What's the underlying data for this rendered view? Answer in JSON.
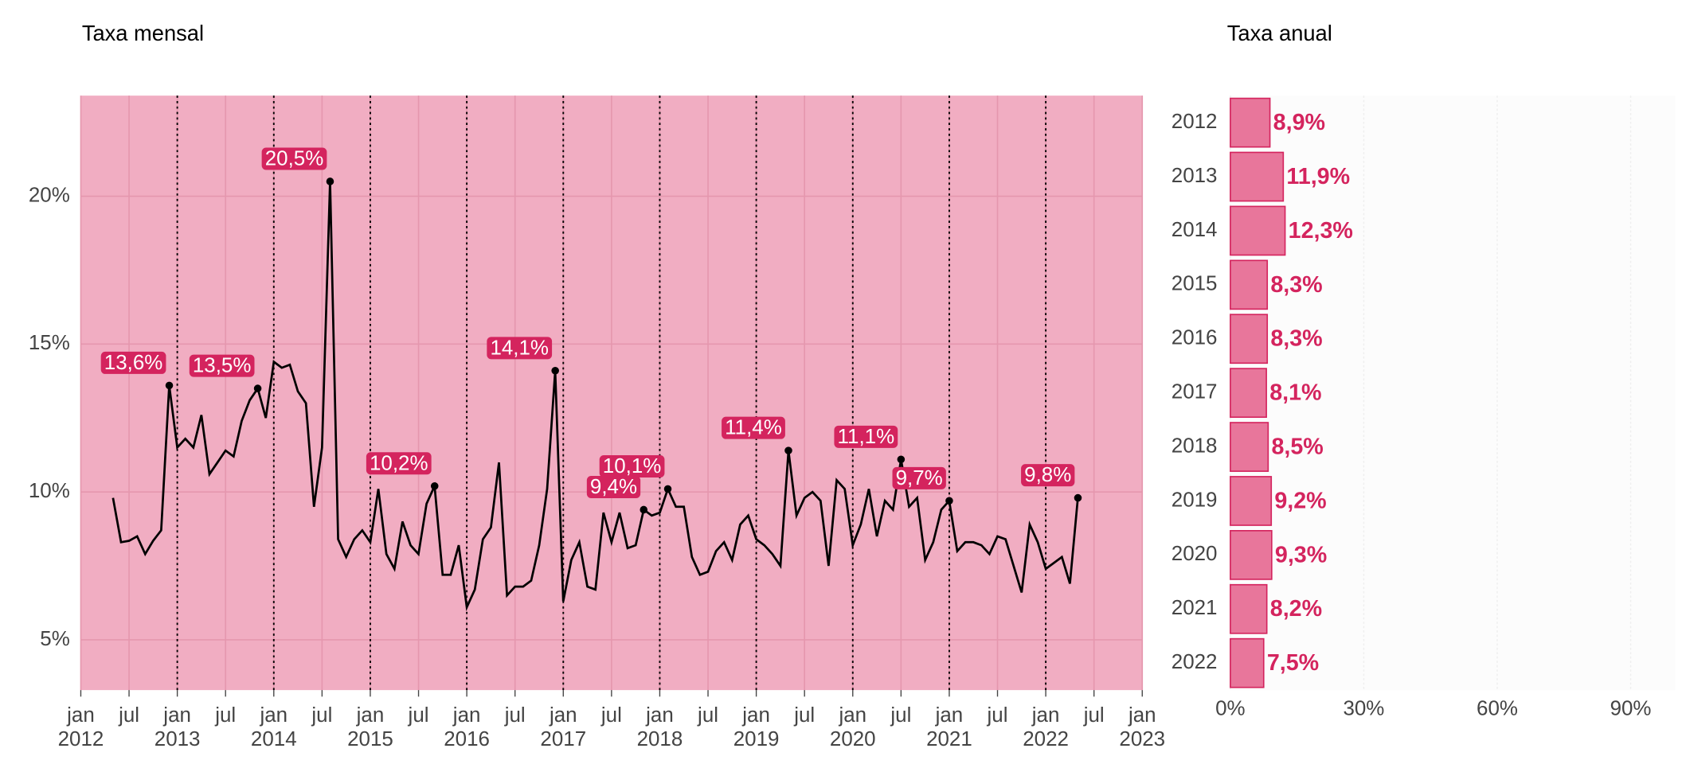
{
  "chart_data": [
    {
      "type": "line",
      "title": "Taxa mensal",
      "color": "#000000",
      "background": "#f1adc2",
      "label_color": "#d4245e",
      "x": [
        "2012-05",
        "2012-06",
        "2012-07",
        "2012-08",
        "2012-09",
        "2012-10",
        "2012-11",
        "2012-12",
        "2013-01",
        "2013-02",
        "2013-03",
        "2013-04",
        "2013-05",
        "2013-06",
        "2013-07",
        "2013-08",
        "2013-09",
        "2013-10",
        "2013-11",
        "2013-12",
        "2014-01",
        "2014-02",
        "2014-03",
        "2014-04",
        "2014-05",
        "2014-06",
        "2014-07",
        "2014-08",
        "2014-09",
        "2014-10",
        "2014-11",
        "2014-12",
        "2015-01",
        "2015-02",
        "2015-03",
        "2015-04",
        "2015-05",
        "2015-06",
        "2015-07",
        "2015-08",
        "2015-09",
        "2015-10",
        "2015-11",
        "2015-12",
        "2016-01",
        "2016-02",
        "2016-03",
        "2016-04",
        "2016-05",
        "2016-06",
        "2016-07",
        "2016-08",
        "2016-09",
        "2016-10",
        "2016-11",
        "2016-12",
        "2017-01",
        "2017-02",
        "2017-03",
        "2017-04",
        "2017-05",
        "2017-06",
        "2017-07",
        "2017-08",
        "2017-09",
        "2017-10",
        "2017-11",
        "2017-12",
        "2018-01",
        "2018-02",
        "2018-03",
        "2018-04",
        "2018-05",
        "2018-06",
        "2018-07",
        "2018-08",
        "2018-09",
        "2018-10",
        "2018-11",
        "2018-12",
        "2019-01",
        "2019-02",
        "2019-03",
        "2019-04",
        "2019-05",
        "2019-06",
        "2019-07",
        "2019-08",
        "2019-09",
        "2019-10",
        "2019-11",
        "2019-12",
        "2020-01",
        "2020-02",
        "2020-03",
        "2020-04",
        "2020-05",
        "2020-06",
        "2020-07",
        "2020-08",
        "2020-09",
        "2020-10",
        "2020-11",
        "2020-12",
        "2021-01",
        "2021-02",
        "2021-03",
        "2021-04",
        "2021-05",
        "2021-06",
        "2021-07",
        "2021-08",
        "2021-09",
        "2021-10",
        "2021-11",
        "2021-12",
        "2022-01",
        "2022-02",
        "2022-03",
        "2022-04",
        "2022-05"
      ],
      "values": [
        9.8,
        8.3,
        8.35,
        8.5,
        7.9,
        8.35,
        8.7,
        13.6,
        11.5,
        11.8,
        11.5,
        12.6,
        10.6,
        11.0,
        11.4,
        11.2,
        12.4,
        13.1,
        13.5,
        12.5,
        14.4,
        14.2,
        14.3,
        13.4,
        13.0,
        9.5,
        11.5,
        20.5,
        8.4,
        7.8,
        8.4,
        8.7,
        8.3,
        10.1,
        7.9,
        7.4,
        9.0,
        8.2,
        7.9,
        9.6,
        10.2,
        7.2,
        7.2,
        8.2,
        6.1,
        6.7,
        8.4,
        8.8,
        11.0,
        6.5,
        6.8,
        6.8,
        7.0,
        8.2,
        10.1,
        14.1,
        6.3,
        7.7,
        8.3,
        6.8,
        6.7,
        9.3,
        8.3,
        9.3,
        8.1,
        8.2,
        9.4,
        9.2,
        9.3,
        10.1,
        9.5,
        9.5,
        7.8,
        7.2,
        7.3,
        8.0,
        8.3,
        7.7,
        8.9,
        9.2,
        8.4,
        8.2,
        7.9,
        7.5,
        11.4,
        9.2,
        9.8,
        10.0,
        9.7,
        7.5,
        10.4,
        10.1,
        8.2,
        8.9,
        10.1,
        8.5,
        9.7,
        9.4,
        11.1,
        9.5,
        9.8,
        7.7,
        8.3,
        9.4,
        9.7,
        8.0,
        8.3,
        8.3,
        8.2,
        7.9,
        8.5,
        8.4,
        7.5,
        6.6,
        8.9,
        8.3,
        7.4,
        7.6,
        7.8,
        6.9,
        9.8
      ],
      "value_labels": [
        null,
        null,
        null,
        null,
        null,
        null,
        null,
        "13,6%",
        null,
        null,
        null,
        null,
        null,
        null,
        null,
        null,
        null,
        null,
        "13,5%",
        null,
        null,
        null,
        null,
        null,
        null,
        null,
        null,
        "20,5%",
        null,
        null,
        null,
        null,
        null,
        null,
        null,
        null,
        null,
        null,
        null,
        null,
        "10,2%",
        null,
        null,
        null,
        null,
        null,
        null,
        null,
        null,
        null,
        null,
        null,
        null,
        null,
        null,
        "14,1%",
        null,
        null,
        null,
        null,
        null,
        null,
        null,
        null,
        null,
        null,
        "9,4%",
        null,
        null,
        "10,1%",
        null,
        null,
        null,
        null,
        null,
        null,
        null,
        null,
        null,
        null,
        null,
        null,
        null,
        null,
        "11,4%",
        null,
        null,
        null,
        null,
        null,
        null,
        null,
        null,
        null,
        null,
        null,
        null,
        null,
        "11,1%",
        null,
        null,
        null,
        null,
        null,
        "9,7%",
        null,
        null,
        null,
        null,
        null,
        null,
        null,
        null,
        null,
        null,
        null,
        null,
        null,
        null,
        null,
        "9,8%"
      ],
      "xlim": [
        "2012-01",
        "2023-01"
      ],
      "xticks": [
        {
          "value": "2012-01",
          "label": "jan",
          "sublabel": "2012"
        },
        {
          "value": "2012-07",
          "label": "jul"
        },
        {
          "value": "2013-01",
          "label": "jan",
          "sublabel": "2013"
        },
        {
          "value": "2013-07",
          "label": "jul"
        },
        {
          "value": "2014-01",
          "label": "jan",
          "sublabel": "2014"
        },
        {
          "value": "2014-07",
          "label": "jul"
        },
        {
          "value": "2015-01",
          "label": "jan",
          "sublabel": "2015"
        },
        {
          "value": "2015-07",
          "label": "jul"
        },
        {
          "value": "2016-01",
          "label": "jan",
          "sublabel": "2016"
        },
        {
          "value": "2016-07",
          "label": "jul"
        },
        {
          "value": "2017-01",
          "label": "jan",
          "sublabel": "2017"
        },
        {
          "value": "2017-07",
          "label": "jul"
        },
        {
          "value": "2018-01",
          "label": "jan",
          "sublabel": "2018"
        },
        {
          "value": "2018-07",
          "label": "jul"
        },
        {
          "value": "2019-01",
          "label": "jan",
          "sublabel": "2019"
        },
        {
          "value": "2019-07",
          "label": "jul"
        },
        {
          "value": "2020-01",
          "label": "jan",
          "sublabel": "2020"
        },
        {
          "value": "2020-07",
          "label": "jul"
        },
        {
          "value": "2021-01",
          "label": "jan",
          "sublabel": "2021"
        },
        {
          "value": "2021-07",
          "label": "jul"
        },
        {
          "value": "2022-01",
          "label": "jan",
          "sublabel": "2022"
        },
        {
          "value": "2022-07",
          "label": "jul"
        },
        {
          "value": "2023-01",
          "label": "jan",
          "sublabel": "2023"
        }
      ],
      "ylim": [
        3.3,
        23.4
      ],
      "yticks": [
        {
          "value": 5,
          "label": "5%"
        },
        {
          "value": 10,
          "label": "10%"
        },
        {
          "value": 15,
          "label": "15%"
        },
        {
          "value": 20,
          "label": "20%"
        }
      ],
      "grid": true
    },
    {
      "type": "bar",
      "orientation": "horizontal",
      "title": "Taxa anual",
      "color": "#e8769b",
      "edge_color": "#d4245e",
      "label_color": "#d4245e",
      "categories": [
        "2012",
        "2013",
        "2014",
        "2015",
        "2016",
        "2017",
        "2018",
        "2019",
        "2020",
        "2021",
        "2022"
      ],
      "values": [
        8.9,
        11.9,
        12.3,
        8.3,
        8.3,
        8.1,
        8.5,
        9.2,
        9.3,
        8.2,
        7.5
      ],
      "value_labels": [
        "8,9%",
        "11,9%",
        "12,3%",
        "8,3%",
        "8,3%",
        "8,1%",
        "8,5%",
        "9,2%",
        "9,3%",
        "8,2%",
        "7,5%"
      ],
      "xlim": [
        0,
        100
      ],
      "xticks": [
        {
          "value": 0,
          "label": "0%"
        },
        {
          "value": 30,
          "label": "30%"
        },
        {
          "value": 60,
          "label": "60%"
        },
        {
          "value": 90,
          "label": "90%"
        }
      ],
      "grid": true
    }
  ]
}
